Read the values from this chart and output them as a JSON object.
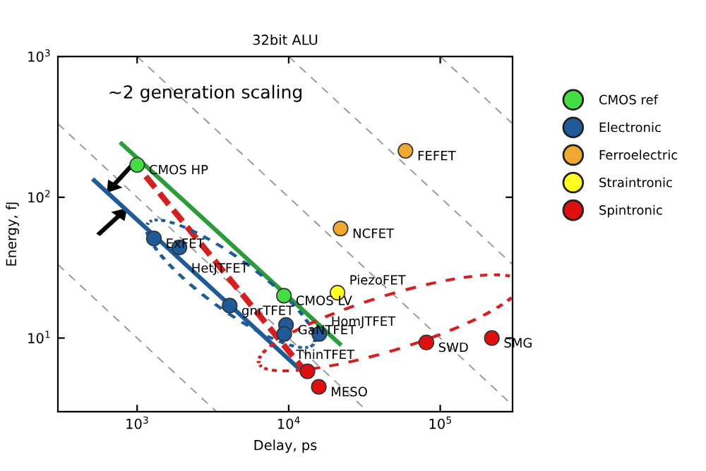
{
  "chart_data": {
    "type": "scatter",
    "title": "32bit ALU",
    "xlabel": "Delay, ps",
    "ylabel": "Energy, fJ",
    "log": "xy",
    "xlim": [
      300,
      300000
    ],
    "ylim": [
      3,
      1000
    ],
    "xticks": [
      {
        "value": 1000,
        "label": "10$^{3}$"
      },
      {
        "value": 10000,
        "label": "10$^{4}$"
      },
      {
        "value": 100000,
        "label": "10$^{5}$"
      }
    ],
    "yticks": [
      {
        "value": 10,
        "label": "10$^{1}$"
      },
      {
        "value": 100,
        "label": "10$^{2}$"
      },
      {
        "value": 1000,
        "label": "10$^{3}$"
      }
    ],
    "grid": false,
    "legend": "right",
    "marker": "circle",
    "series": [
      {
        "type": "line",
        "marker": "none",
        "color": "#999999",
        "line_style": "dashed",
        "x": [
          300,
          3333
        ],
        "values": [
          33.3,
          3
        ]
      },
      {
        "type": "line",
        "marker": "none",
        "color": "#999999",
        "line_style": "dashed",
        "x": [
          300,
          33333
        ],
        "values": [
          333,
          3
        ]
      },
      {
        "type": "line",
        "marker": "none",
        "color": "#999999",
        "line_style": "dashed",
        "x": [
          1000,
          300000
        ],
        "values": [
          1000,
          3.33
        ]
      },
      {
        "type": "line",
        "marker": "none",
        "color": "#999999",
        "line_style": "dashed",
        "x": [
          10000,
          300000
        ],
        "values": [
          1000,
          33.3
        ]
      },
      {
        "type": "line",
        "marker": "none",
        "color": "#999999",
        "line_style": "dashed",
        "x": [
          100000,
          300000
        ],
        "values": [
          1000,
          333
        ]
      },
      {
        "type": "line",
        "marker": "none",
        "color": "#2a9d3a",
        "line_style": "solid",
        "x": [
          790,
          21700
        ],
        "values": [
          240,
          9.1
        ]
      },
      {
        "type": "line",
        "marker": "none",
        "color": "#1f5a99",
        "line_style": "solid",
        "x": [
          520,
          12900
        ],
        "values": [
          132,
          5.5
        ]
      },
      {
        "type": "line",
        "marker": "none",
        "color": "#d42020",
        "line_style": "dashed",
        "x": [
          1140,
          13200
        ],
        "values": [
          141,
          5.6
        ]
      },
      {
        "name": "CMOS ref",
        "color": "#44dd44",
        "x": [
          1000,
          9300
        ],
        "values": [
          170,
          20
        ]
      },
      {
        "name": "Electronic",
        "color": "#1f5a99",
        "x": [
          1290,
          1900,
          4080,
          9600,
          9350,
          15900
        ],
        "values": [
          51,
          44,
          17,
          12.4,
          10.7,
          10.7
        ]
      },
      {
        "name": "Ferroelectric",
        "color": "#f0a830",
        "x": [
          59000,
          22000
        ],
        "values": [
          214,
          60
        ]
      },
      {
        "name": "Straintronic",
        "color": "#ffff22",
        "x": [
          21000
        ],
        "values": [
          21
        ]
      },
      {
        "name": "Spintronic",
        "color": "#e01010",
        "x": [
          81000,
          219000,
          15800,
          13300
        ],
        "values": [
          9.3,
          10,
          4.5,
          5.8
        ]
      }
    ],
    "annotations": [
      "~2 generation scaling",
      {
        "text": "CMOS HP",
        "x": 1000,
        "y": 170
      },
      {
        "text": "CMOS LV",
        "x": 9300,
        "y": 20
      },
      {
        "text": "FEFET",
        "x": 59000,
        "y": 214
      },
      {
        "text": "NCFET",
        "x": 22000,
        "y": 60
      },
      {
        "text": "PiezoFET",
        "x": 21000,
        "y": 21
      },
      {
        "text": "ExFET",
        "x": 1290,
        "y": 51
      },
      {
        "text": "HetJTFET",
        "x": 1900,
        "y": 44
      },
      {
        "text": "gnrTFET",
        "x": 4080,
        "y": 17
      },
      {
        "text": "GaNTFET",
        "x": 9600,
        "y": 12.4
      },
      {
        "text": "ThinTFET",
        "x": 9350,
        "y": 10.7
      },
      {
        "text": "HomJTFET",
        "x": 15900,
        "y": 10.7
      },
      {
        "text": "SWD",
        "x": 81000,
        "y": 9.3
      },
      {
        "text": "SMG",
        "x": 219000,
        "y": 10
      },
      {
        "text": "MESO",
        "x": 15800,
        "y": 4.5
      }
    ]
  }
}
